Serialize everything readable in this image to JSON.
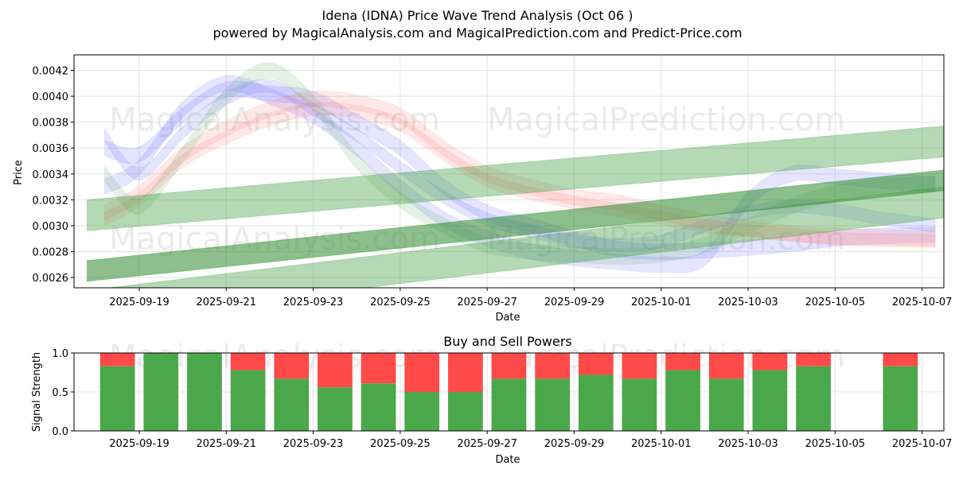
{
  "chart_data": [
    {
      "type": "line",
      "title": "Idena (IDNA) Price Wave Trend Analysis (Oct 06 )",
      "subtitle": "powered by MagicalAnalysis.com and MagicalPrediction.com and Predict-Price.com",
      "xlabel": "Date",
      "ylabel": "Price",
      "x_range": [
        -1.5,
        18.5
      ],
      "ylim": [
        0.00252,
        0.00432
      ],
      "yticks": [
        "0.0026",
        "0.0028",
        "0.0030",
        "0.0032",
        "0.0034",
        "0.0036",
        "0.0038",
        "0.0040",
        "0.0042"
      ],
      "ytick_values": [
        0.0026,
        0.0028,
        0.003,
        0.0032,
        0.0034,
        0.0036,
        0.0038,
        0.004,
        0.0042
      ],
      "xticks": [
        "2025-09-19",
        "2025-09-21",
        "2025-09-23",
        "2025-09-25",
        "2025-09-27",
        "2025-09-29",
        "2025-10-01",
        "2025-10-03",
        "2025-10-05",
        "2025-10-07"
      ],
      "xtick_days": [
        0,
        2,
        4,
        6,
        8,
        10,
        12,
        14,
        16,
        18
      ],
      "grid": true,
      "watermarks": [
        "MagicalAnalysis.com",
        "MagicalPrediction.com",
        "MagicalAnalysis.com",
        "MagicalPrediction.com"
      ],
      "series": [
        {
          "name": "blue wave 1",
          "color": "#6060ff",
          "band": 0.00012,
          "x": [
            -0.8,
            0,
            1,
            2,
            3,
            4,
            5,
            6,
            7,
            8,
            9,
            10,
            11,
            12,
            13,
            14,
            15,
            16,
            17,
            18.3
          ],
          "y": [
            0.0036,
            0.00355,
            0.00385,
            0.00405,
            0.00402,
            0.00398,
            0.0038,
            0.0036,
            0.0033,
            0.0031,
            0.003,
            0.0029,
            0.00282,
            0.0028,
            0.00281,
            0.00283,
            0.00286,
            0.0029,
            0.00292,
            0.00293
          ]
        },
        {
          "name": "blue wave 2",
          "color": "#6060ff",
          "band": 0.00012,
          "x": [
            -0.8,
            0,
            1,
            2,
            3,
            4,
            5,
            6,
            7,
            8,
            9,
            10,
            11,
            12,
            13,
            14,
            15,
            16,
            17,
            18.3
          ],
          "y": [
            0.0033,
            0.00345,
            0.0039,
            0.0041,
            0.004,
            0.00385,
            0.0036,
            0.0033,
            0.00305,
            0.0029,
            0.0028,
            0.00275,
            0.00272,
            0.0027,
            0.00275,
            0.0032,
            0.0034,
            0.00338,
            0.00335,
            0.00332
          ]
        },
        {
          "name": "blue wave 3",
          "color": "#6060ff",
          "band": 0.0001,
          "x": [
            -0.8,
            0,
            1,
            2,
            3,
            4,
            5,
            6,
            7,
            8,
            9,
            10,
            11,
            12,
            13,
            14,
            15,
            16,
            17,
            18.3
          ],
          "y": [
            0.0037,
            0.0034,
            0.00372,
            0.00398,
            0.00408,
            0.0039,
            0.0037,
            0.00345,
            0.00322,
            0.00305,
            0.00296,
            0.00288,
            0.00285,
            0.00288,
            0.003,
            0.0031,
            0.00315,
            0.00312,
            0.00306,
            0.003
          ]
        },
        {
          "name": "red wave 1",
          "color": "#ff7070",
          "band": 0.00012,
          "x": [
            -0.8,
            0,
            1,
            2,
            3,
            4,
            5,
            6,
            7,
            8,
            9,
            10,
            11,
            12,
            13,
            14,
            15,
            16,
            17,
            18.3
          ],
          "y": [
            0.0031,
            0.00325,
            0.00355,
            0.00375,
            0.0039,
            0.00398,
            0.00395,
            0.00385,
            0.0036,
            0.0034,
            0.0033,
            0.00322,
            0.00318,
            0.0031,
            0.00303,
            0.00298,
            0.00294,
            0.00292,
            0.00291,
            0.0029
          ]
        },
        {
          "name": "red wave 2",
          "color": "#ff7070",
          "band": 0.0001,
          "x": [
            -0.8,
            0,
            1,
            2,
            3,
            4,
            5,
            6,
            7,
            8,
            9,
            10,
            11,
            12,
            13,
            14,
            15,
            16,
            17,
            18.3
          ],
          "y": [
            0.00305,
            0.0032,
            0.0035,
            0.00368,
            0.00382,
            0.0039,
            0.00388,
            0.00378,
            0.00355,
            0.00335,
            0.00325,
            0.00318,
            0.00312,
            0.00306,
            0.003,
            0.00296,
            0.00293,
            0.0029,
            0.00289,
            0.00288
          ]
        },
        {
          "name": "green wave",
          "color": "#55aa55",
          "band": 0.00012,
          "x": [
            -0.8,
            0,
            1,
            2,
            3,
            4,
            5,
            6,
            7,
            8,
            9,
            10,
            11,
            12,
            13,
            14,
            15,
            16,
            17,
            18.3
          ],
          "y": [
            0.0034,
            0.00315,
            0.00355,
            0.004,
            0.0042,
            0.00395,
            0.0035,
            0.0032,
            0.003,
            0.00285,
            0.0028,
            0.00278,
            0.00276,
            0.00278,
            0.00285,
            0.003,
            0.00315,
            0.00325,
            0.0033,
            0.00332
          ]
        },
        {
          "name": "green trend upper",
          "color": "#3a9a3a",
          "band": 0.00024,
          "x": [
            -1.2,
            18.5
          ],
          "y": [
            0.00308,
            0.00365
          ]
        },
        {
          "name": "green trend mid",
          "color": "#2e8b2e",
          "band": 0.00016,
          "x": [
            -1.2,
            18.5
          ],
          "y": [
            0.00265,
            0.00335
          ]
        },
        {
          "name": "green trend lower",
          "color": "#3a9a3a",
          "band": 0.00024,
          "x": [
            -1.2,
            18.5
          ],
          "y": [
            0.00238,
            0.00318
          ]
        }
      ]
    },
    {
      "type": "bar",
      "title": "Buy and Sell Powers",
      "xlabel": "",
      "ylabel": "Signal Strength",
      "ylim": [
        0,
        1
      ],
      "yticks": [
        "0.0",
        "0.5",
        "1.0"
      ],
      "ytick_values": [
        0,
        0.5,
        1
      ],
      "x_range": [
        -1.5,
        18.5
      ],
      "xticks": [
        "2025-09-19",
        "2025-09-21",
        "2025-09-23",
        "2025-09-25",
        "2025-09-27",
        "2025-09-29",
        "2025-10-01",
        "2025-10-03",
        "2025-10-05",
        "2025-10-07"
      ],
      "xtick_days": [
        0,
        2,
        4,
        6,
        8,
        10,
        12,
        14,
        16,
        18
      ],
      "buy_color": "#4aa84a",
      "sell_color": "#ff4a4a",
      "days": [
        -0.5,
        0.5,
        1.5,
        2.5,
        3.5,
        4.5,
        5.5,
        6.5,
        7.5,
        8.5,
        9.5,
        10.5,
        11.5,
        12.5,
        13.5,
        14.5,
        15.5,
        17.5
      ],
      "buy": [
        0.83,
        1.0,
        1.0,
        0.78,
        0.67,
        0.56,
        0.61,
        0.5,
        0.5,
        0.67,
        0.67,
        0.72,
        0.67,
        0.78,
        0.67,
        0.78,
        0.83,
        0.83
      ]
    }
  ]
}
